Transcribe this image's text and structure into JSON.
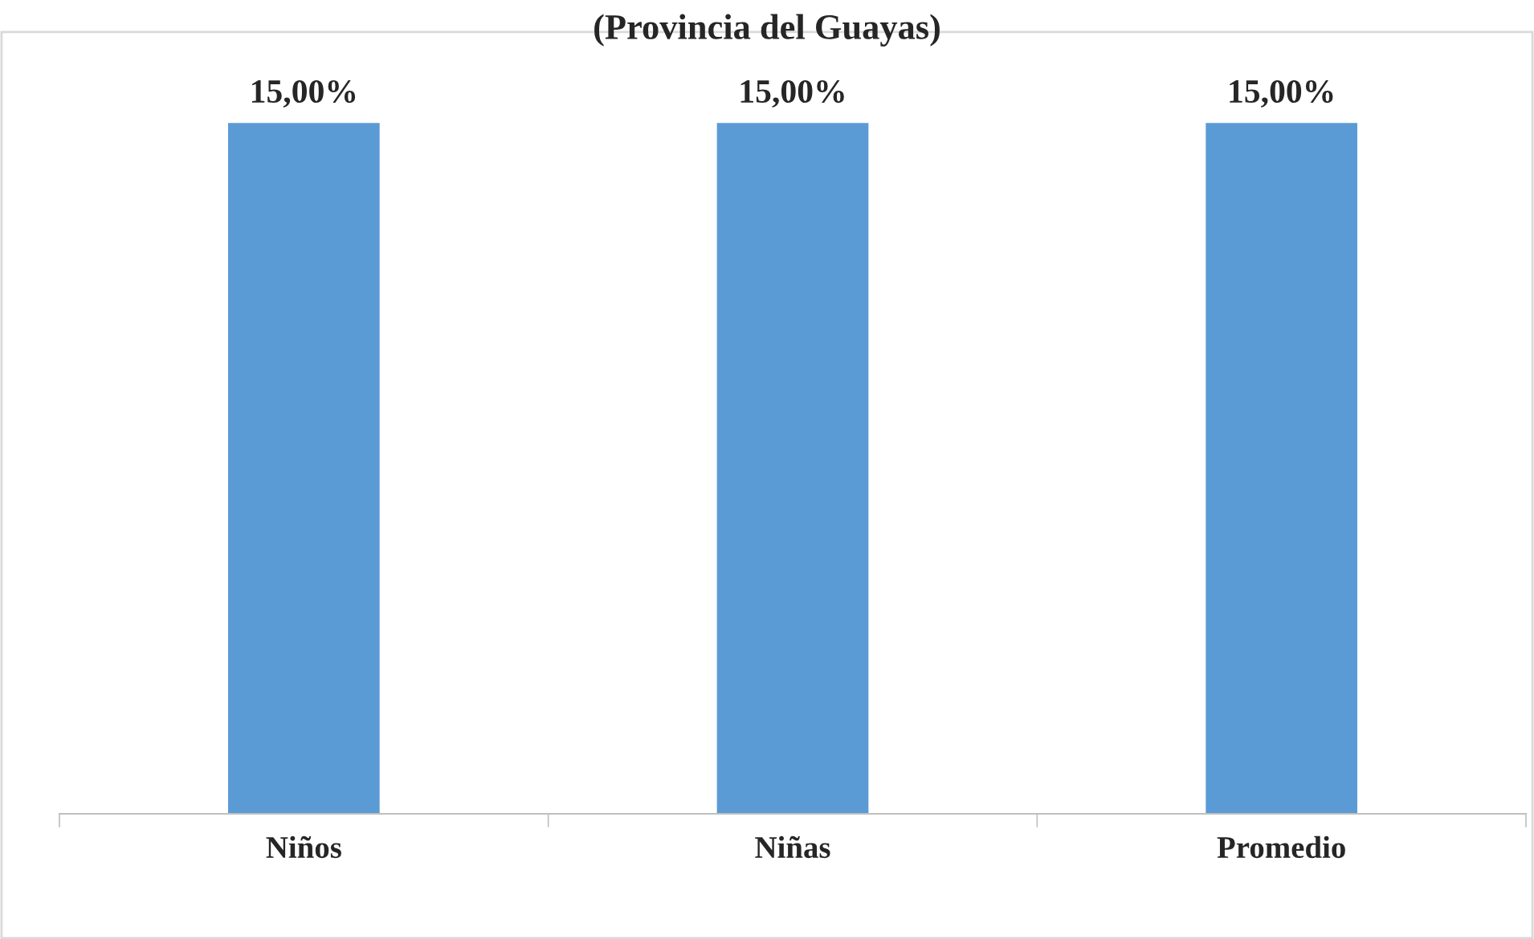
{
  "chart_data": {
    "type": "bar",
    "title": "(Provincia del Guayas)",
    "categories": [
      "Niños",
      "Niñas",
      "Promedio"
    ],
    "values": [
      15,
      15,
      15
    ],
    "value_labels": [
      "15,00%",
      "15,00%",
      "15,00%"
    ],
    "color": "#5b9bd5",
    "grid": false,
    "legend": false
  }
}
